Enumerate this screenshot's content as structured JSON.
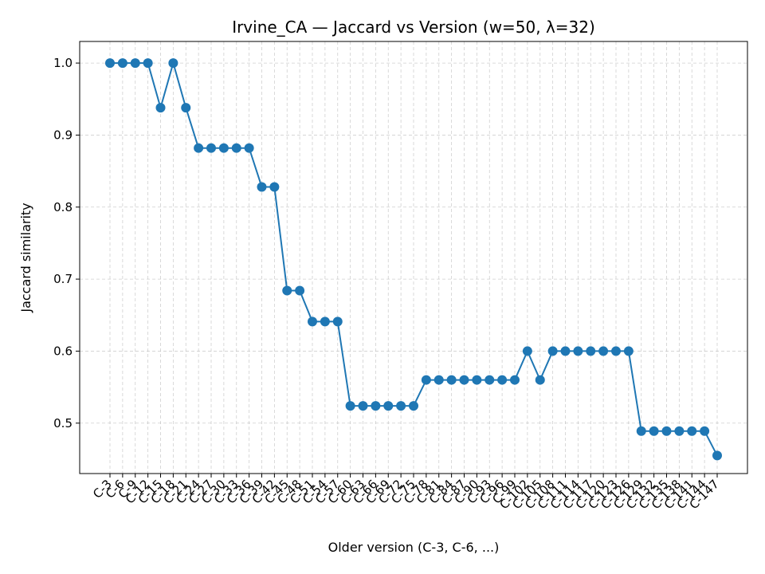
{
  "chart_data": {
    "type": "line",
    "title": "Irvine_CA — Jaccard vs Version (w=50, λ=32)",
    "xlabel": "Older version (C-3, C-6, ...)",
    "ylabel": "Jaccard similarity",
    "ylim": [
      0.43,
      1.03
    ],
    "yticks": [
      0.5,
      0.6,
      0.7,
      0.8,
      0.9,
      1.0
    ],
    "grid": true,
    "line_color": "#1f77b4",
    "categories": [
      "C-3",
      "C-6",
      "C-9",
      "C-12",
      "C-15",
      "C-18",
      "C-21",
      "C-24",
      "C-27",
      "C-30",
      "C-33",
      "C-36",
      "C-39",
      "C-42",
      "C-45",
      "C-48",
      "C-51",
      "C-54",
      "C-57",
      "C-60",
      "C-63",
      "C-66",
      "C-69",
      "C-72",
      "C-75",
      "C-78",
      "C-81",
      "C-84",
      "C-87",
      "C-90",
      "C-93",
      "C-96",
      "C-99",
      "C-102",
      "C-105",
      "C-108",
      "C-111",
      "C-114",
      "C-117",
      "C-120",
      "C-123",
      "C-126",
      "C-129",
      "C-132",
      "C-135",
      "C-138",
      "C-141",
      "C-144",
      "C-147"
    ],
    "values": [
      1.0,
      1.0,
      1.0,
      1.0,
      0.938,
      1.0,
      0.938,
      0.882,
      0.882,
      0.882,
      0.882,
      0.882,
      0.828,
      0.828,
      0.684,
      0.684,
      0.641,
      0.641,
      0.641,
      0.524,
      0.524,
      0.524,
      0.524,
      0.524,
      0.524,
      0.56,
      0.56,
      0.56,
      0.56,
      0.56,
      0.56,
      0.56,
      0.56,
      0.6,
      0.56,
      0.6,
      0.6,
      0.6,
      0.6,
      0.6,
      0.6,
      0.6,
      0.489,
      0.489,
      0.489,
      0.489,
      0.489,
      0.489,
      0.455
    ]
  }
}
